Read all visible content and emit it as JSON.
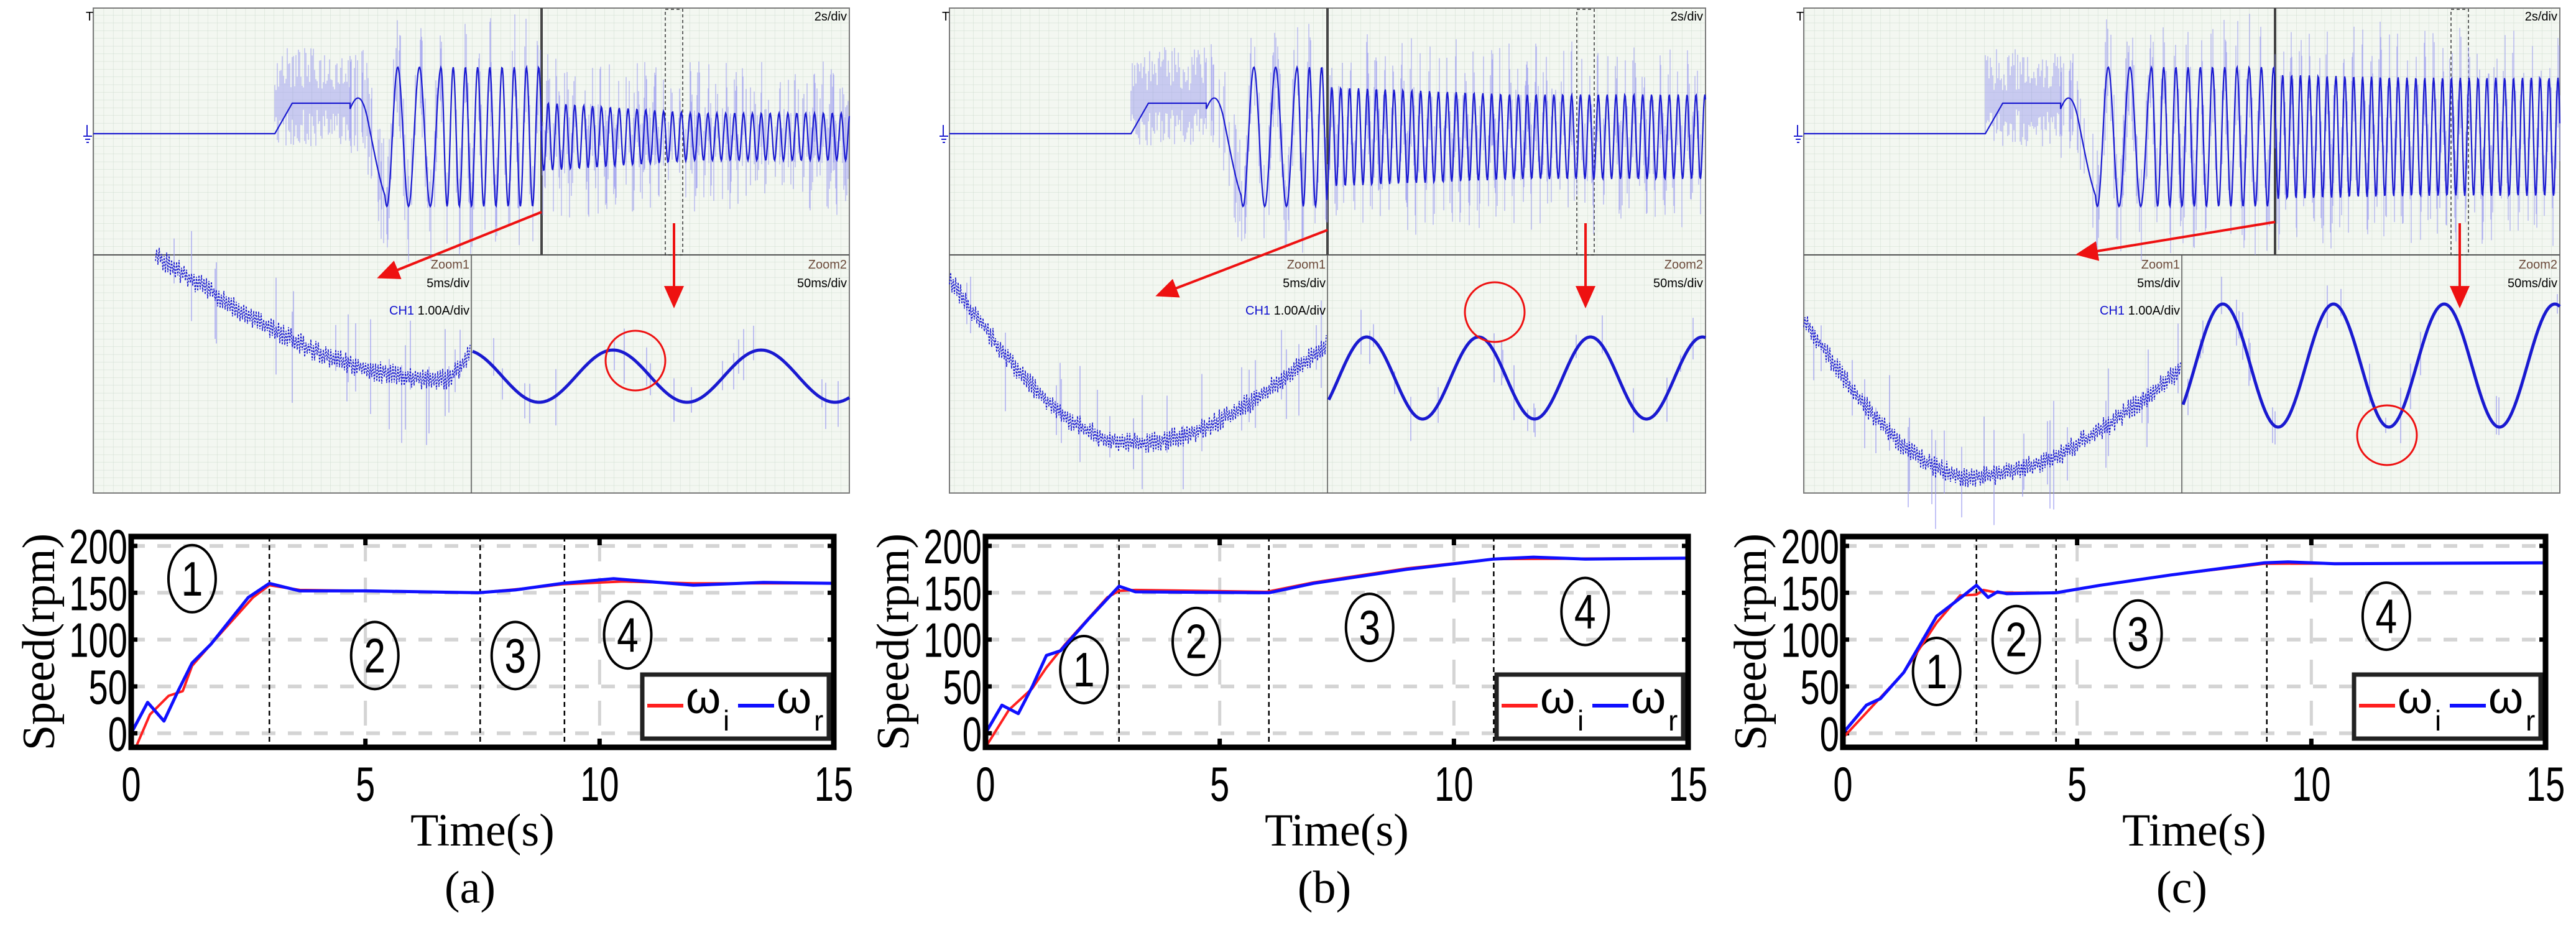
{
  "colors": {
    "omega_i": "#ff2020",
    "omega_r": "#1010ff",
    "scope_trace": "#1a1ad0",
    "scope_noise": "#9a9af0",
    "scope_bg": "#f3f7f1",
    "annotation": "#ee1111",
    "grid": "#d4d4d4"
  },
  "scopes": [
    {
      "panel": "a",
      "timebase": "2s/div",
      "zoom1_label": "Zoom1",
      "zoom1_timebase": "5ms/div",
      "channel": "CH1",
      "channel_scale": "1.00A/div",
      "zoom2_label": "Zoom2",
      "zoom2_timebase": "50ms/div"
    },
    {
      "panel": "b",
      "timebase": "2s/div",
      "zoom1_label": "Zoom1",
      "zoom1_timebase": "5ms/div",
      "channel": "CH1",
      "channel_scale": "1.00A/div",
      "zoom2_label": "Zoom2",
      "zoom2_timebase": "50ms/div"
    },
    {
      "panel": "c",
      "timebase": "2s/div",
      "zoom1_label": "Zoom1",
      "zoom1_timebase": "5ms/div",
      "channel": "CH1",
      "channel_scale": "1.00A/div",
      "zoom2_label": "Zoom2",
      "zoom2_timebase": "50ms/div"
    }
  ],
  "chart_data": [
    {
      "type": "line",
      "caption": "(a)",
      "xlabel": "Time(s)",
      "ylabel": "Speed(rpm)",
      "xlim": [
        0,
        15
      ],
      "ylim": [
        -15,
        210
      ],
      "xticks": [
        0,
        5,
        10,
        15
      ],
      "yticks": [
        0,
        50,
        100,
        150,
        200
      ],
      "grid": true,
      "legend_position": "bottom-right",
      "stage_boundaries": [
        2.95,
        7.45,
        9.25
      ],
      "stage_labels": [
        {
          "text": "1",
          "at": [
            1.3,
            165
          ]
        },
        {
          "text": "2",
          "at": [
            5.2,
            83
          ]
        },
        {
          "text": "3",
          "at": [
            8.2,
            83
          ]
        },
        {
          "text": "4",
          "at": [
            10.6,
            105
          ]
        }
      ],
      "series": [
        {
          "name": "ω",
          "sub": "i",
          "color": "#ff2020",
          "points": [
            [
              0,
              -15
            ],
            [
              0.1,
              -15
            ],
            [
              0.4,
              20
            ],
            [
              0.8,
              40
            ],
            [
              1.1,
              45
            ],
            [
              1.3,
              72
            ],
            [
              1.7,
              95
            ],
            [
              2.6,
              145
            ],
            [
              2.95,
              158
            ],
            [
              3.6,
              153
            ],
            [
              5,
              152
            ],
            [
              7.4,
              150
            ],
            [
              8.5,
              155
            ],
            [
              9.2,
              159
            ],
            [
              10.5,
              162
            ],
            [
              12,
              160
            ],
            [
              15,
              160
            ]
          ]
        },
        {
          "name": "ω",
          "sub": "r",
          "color": "#1010ff",
          "points": [
            [
              0,
              0
            ],
            [
              0.35,
              33
            ],
            [
              0.7,
              13
            ],
            [
              1.0,
              45
            ],
            [
              1.3,
              75
            ],
            [
              1.7,
              95
            ],
            [
              2.5,
              145
            ],
            [
              2.95,
              160
            ],
            [
              3.6,
              152
            ],
            [
              5,
              152
            ],
            [
              7.4,
              150
            ],
            [
              8.2,
              153
            ],
            [
              9.2,
              160
            ],
            [
              10.3,
              165
            ],
            [
              12,
              158
            ],
            [
              13.5,
              161
            ],
            [
              15,
              160
            ]
          ]
        }
      ]
    },
    {
      "type": "line",
      "caption": "(b)",
      "xlabel": "Time(s)",
      "ylabel": "Speed(rpm)",
      "xlim": [
        0,
        15
      ],
      "ylim": [
        -15,
        210
      ],
      "xticks": [
        0,
        5,
        10,
        15
      ],
      "yticks": [
        0,
        50,
        100,
        150,
        200
      ],
      "grid": true,
      "legend_position": "bottom-right",
      "stage_boundaries": [
        2.85,
        6.05,
        10.85
      ],
      "stage_labels": [
        {
          "text": "1",
          "at": [
            2.1,
            68
          ]
        },
        {
          "text": "2",
          "at": [
            4.5,
            98
          ]
        },
        {
          "text": "3",
          "at": [
            8.2,
            113
          ]
        },
        {
          "text": "4",
          "at": [
            12.8,
            130
          ]
        }
      ],
      "series": [
        {
          "name": "ω",
          "sub": "i",
          "color": "#ff2020",
          "points": [
            [
              0,
              -15
            ],
            [
              0.5,
              25
            ],
            [
              1.0,
              48
            ],
            [
              1.3,
              70
            ],
            [
              1.7,
              95
            ],
            [
              2.6,
              145
            ],
            [
              2.85,
              152
            ],
            [
              3.2,
              153
            ],
            [
              6,
              151
            ],
            [
              7,
              161
            ],
            [
              9,
              176
            ],
            [
              10.85,
              186
            ],
            [
              15,
              187
            ]
          ]
        },
        {
          "name": "ω",
          "sub": "r",
          "color": "#1010ff",
          "points": [
            [
              0,
              0
            ],
            [
              0.35,
              30
            ],
            [
              0.7,
              21
            ],
            [
              1.0,
              50
            ],
            [
              1.3,
              83
            ],
            [
              1.6,
              88
            ],
            [
              2.2,
              122
            ],
            [
              2.85,
              157
            ],
            [
              3.2,
              151
            ],
            [
              6.05,
              150
            ],
            [
              7,
              160
            ],
            [
              9,
              175
            ],
            [
              10.85,
              186
            ],
            [
              11.7,
              188
            ],
            [
              12.8,
              186
            ],
            [
              15,
              187
            ]
          ]
        }
      ]
    },
    {
      "type": "line",
      "caption": "(c)",
      "xlabel": "Time(s)",
      "ylabel": "Speed(rpm)",
      "xlim": [
        0,
        15
      ],
      "ylim": [
        -15,
        210
      ],
      "xticks": [
        0,
        5,
        10,
        15
      ],
      "yticks": [
        0,
        50,
        100,
        150,
        200
      ],
      "grid": true,
      "legend_position": "bottom-right",
      "stage_boundaries": [
        2.85,
        4.55,
        9.05
      ],
      "stage_labels": [
        {
          "text": "1",
          "at": [
            2.0,
            66
          ]
        },
        {
          "text": "2",
          "at": [
            3.7,
            100
          ]
        },
        {
          "text": "3",
          "at": [
            6.3,
            106
          ]
        },
        {
          "text": "4",
          "at": [
            11.6,
            125
          ]
        }
      ],
      "series": [
        {
          "name": "ω",
          "sub": "i",
          "color": "#ff2020",
          "points": [
            [
              0,
              -5
            ],
            [
              0.5,
              22
            ],
            [
              1.3,
              65
            ],
            [
              2.0,
              118
            ],
            [
              2.5,
              147
            ],
            [
              2.85,
              148
            ],
            [
              3.0,
              153
            ],
            [
              3.3,
              150
            ],
            [
              4.55,
              150
            ],
            [
              5.5,
              158
            ],
            [
              7,
              169
            ],
            [
              9.0,
              181
            ],
            [
              15,
              182
            ]
          ]
        },
        {
          "name": "ω",
          "sub": "r",
          "color": "#1010ff",
          "points": [
            [
              0,
              0
            ],
            [
              0.5,
              30
            ],
            [
              0.8,
              37
            ],
            [
              1.3,
              65
            ],
            [
              2.0,
              125
            ],
            [
              2.6,
              148
            ],
            [
              2.85,
              158
            ],
            [
              3.1,
              145
            ],
            [
              3.3,
              151
            ],
            [
              3.5,
              149
            ],
            [
              4.55,
              150
            ],
            [
              5.5,
              158
            ],
            [
              7,
              169
            ],
            [
              9.0,
              182
            ],
            [
              9.5,
              183
            ],
            [
              10.5,
              181
            ],
            [
              15,
              182
            ]
          ]
        }
      ]
    }
  ]
}
